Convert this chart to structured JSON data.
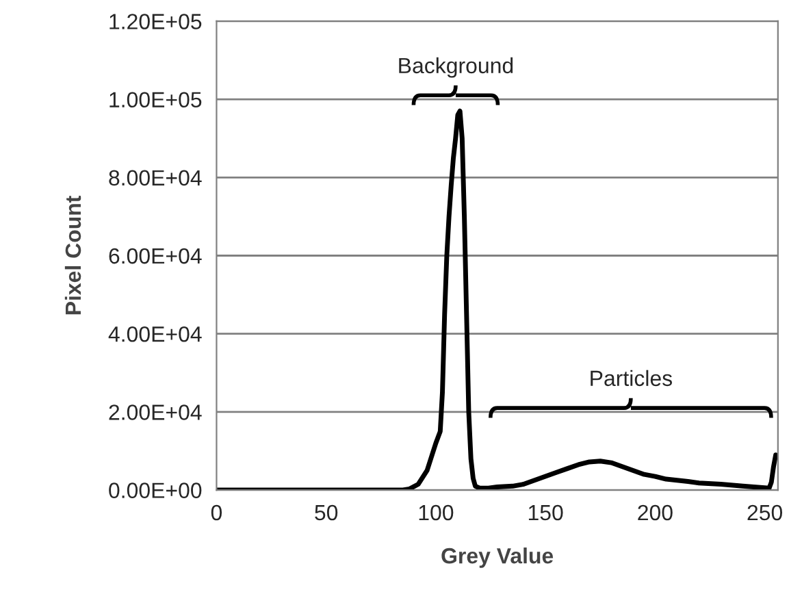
{
  "chart_data": {
    "type": "line",
    "xlabel": "Grey Value",
    "ylabel": "Pixel Count",
    "series": [
      {
        "color": "#000000",
        "x": [
          0,
          85,
          88,
          92,
          96,
          100,
          102,
          103,
          104,
          105,
          106,
          107,
          108,
          109,
          110,
          111,
          112,
          113,
          114,
          115,
          116,
          117,
          118,
          120,
          124,
          128,
          135,
          140,
          145,
          150,
          155,
          160,
          165,
          170,
          175,
          180,
          185,
          190,
          195,
          200,
          205,
          210,
          215,
          220,
          230,
          240,
          245,
          250,
          252,
          253,
          254,
          255
        ],
        "values": [
          0,
          0,
          300,
          1500,
          5000,
          12000,
          15000,
          25000,
          45000,
          60000,
          70000,
          78000,
          85000,
          90000,
          96000,
          97000,
          90000,
          70000,
          45000,
          20000,
          8000,
          3000,
          1000,
          500,
          500,
          800,
          1000,
          1500,
          2500,
          3500,
          4500,
          5500,
          6500,
          7200,
          7400,
          7000,
          6000,
          5000,
          4000,
          3500,
          2800,
          2500,
          2200,
          1800,
          1500,
          1000,
          800,
          600,
          500,
          2000,
          6000,
          9000
        ]
      }
    ],
    "xlim": [
      0,
      256
    ],
    "xticks": [
      0,
      50,
      100,
      150,
      200,
      250
    ],
    "ylim": [
      0,
      120000
    ],
    "yticks": [
      {
        "value": 0,
        "label": "0.00E+00"
      },
      {
        "value": 20000,
        "label": "2.00E+04"
      },
      {
        "value": 40000,
        "label": "4.00E+04"
      },
      {
        "value": 60000,
        "label": "6.00E+04"
      },
      {
        "value": 80000,
        "label": "8.00E+04"
      },
      {
        "value": 100000,
        "label": "1.00E+05"
      },
      {
        "value": 120000,
        "label": "1.20E+05"
      }
    ],
    "grid": "y",
    "marker": "none",
    "line_style": "solid",
    "annotations": [
      "Background",
      "Particles"
    ]
  }
}
